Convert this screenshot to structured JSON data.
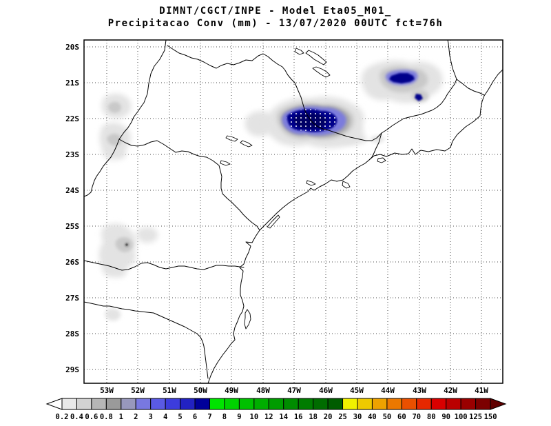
{
  "header": {
    "line1": "DIMNT/CGCT/INPE -  Model Eta05_M01_",
    "line2": "Precipitacao Conv (mm) - 13/07/2020 00UTC fct=76h"
  },
  "axes": {
    "lat_labels": [
      "20S",
      "21S",
      "22S",
      "23S",
      "24S",
      "25S",
      "26S",
      "27S",
      "28S",
      "29S"
    ],
    "lon_labels": [
      "53W",
      "52W",
      "51W",
      "50W",
      "49W",
      "48W",
      "47W",
      "46W",
      "45W",
      "44W",
      "43W",
      "42W",
      "41W"
    ]
  },
  "colorbar": {
    "values": [
      "0.2",
      "0.4",
      "0.6",
      "0.8",
      "1",
      "2",
      "3",
      "4",
      "5",
      "6",
      "7",
      "8",
      "9",
      "10",
      "12",
      "14",
      "16",
      "18",
      "20",
      "25",
      "30",
      "40",
      "50",
      "60",
      "70",
      "80",
      "90",
      "100",
      "125",
      "150"
    ],
    "colors": [
      "#ffffff",
      "#e8e8e8",
      "#d2d2d2",
      "#b6b6b6",
      "#9a9a9a",
      "#9898bc",
      "#7878e0",
      "#5a5ae4",
      "#3c3cdc",
      "#2222c2",
      "#00009a",
      "#00e400",
      "#00d200",
      "#00c000",
      "#00ae00",
      "#009c00",
      "#008c00",
      "#007c00",
      "#006c00",
      "#005c00",
      "#f0f000",
      "#eeca00",
      "#eea200",
      "#ec7800",
      "#ea5000",
      "#e62800",
      "#d80000",
      "#ba0000",
      "#9a0000",
      "#7c0000",
      "#600000"
    ]
  },
  "palette": {
    "white": "#ffffff",
    "gray1": "#e3e3e3",
    "gray2": "#c9c9c9",
    "gray3": "#ababab",
    "gray4": "#8f8f8f",
    "gray_dark": "#606060",
    "blue_light": "#7b7bdd",
    "navy": "#00008b",
    "navy_dark": "#000066"
  }
}
